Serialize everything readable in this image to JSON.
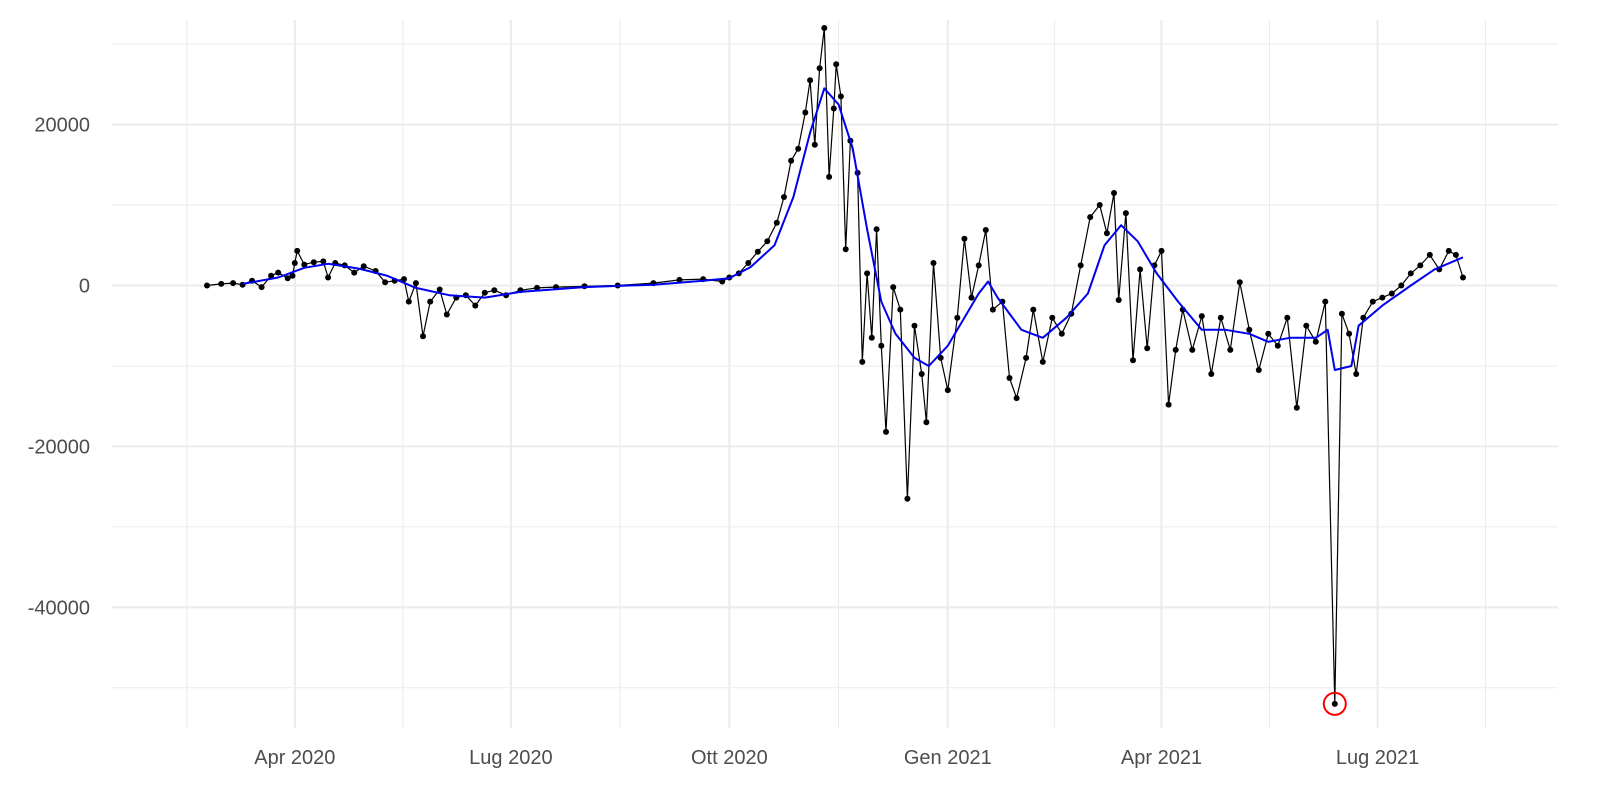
{
  "chart_data": {
    "type": "line",
    "title": "",
    "xlabel": "",
    "ylabel": "",
    "grid": true,
    "x_range": [
      "2020-01-15",
      "2021-09-15"
    ],
    "y_range": [
      -55000,
      33000
    ],
    "x_ticks": [
      {
        "date": "2020-04-01",
        "label": "Apr 2020"
      },
      {
        "date": "2020-07-01",
        "label": "Lug 2020"
      },
      {
        "date": "2020-10-01",
        "label": "Ott 2020"
      },
      {
        "date": "2021-01-01",
        "label": "Gen 2021"
      },
      {
        "date": "2021-04-01",
        "label": "Apr 2021"
      },
      {
        "date": "2021-07-01",
        "label": "Lug 2021"
      }
    ],
    "y_ticks": [
      {
        "value": 20000,
        "label": "20000"
      },
      {
        "value": 0,
        "label": "0"
      },
      {
        "value": -20000,
        "label": "-20000"
      },
      {
        "value": -40000,
        "label": "-40000"
      }
    ],
    "series": [
      {
        "role": "daily-values",
        "color": "#000000",
        "style": "line-with-points",
        "points": [
          [
            "2020-02-24",
            0
          ],
          [
            "2020-03-01",
            200
          ],
          [
            "2020-03-06",
            300
          ],
          [
            "2020-03-10",
            100
          ],
          [
            "2020-03-14",
            600
          ],
          [
            "2020-03-18",
            -200
          ],
          [
            "2020-03-22",
            1200
          ],
          [
            "2020-03-25",
            1600
          ],
          [
            "2020-03-29",
            900
          ],
          [
            "2020-03-31",
            1200
          ],
          [
            "2020-04-01",
            2800
          ],
          [
            "2020-04-02",
            4300
          ],
          [
            "2020-04-05",
            2600
          ],
          [
            "2020-04-09",
            2900
          ],
          [
            "2020-04-13",
            3000
          ],
          [
            "2020-04-15",
            1000
          ],
          [
            "2020-04-18",
            2800
          ],
          [
            "2020-04-22",
            2500
          ],
          [
            "2020-04-26",
            1600
          ],
          [
            "2020-04-30",
            2400
          ],
          [
            "2020-05-05",
            1800
          ],
          [
            "2020-05-09",
            400
          ],
          [
            "2020-05-13",
            600
          ],
          [
            "2020-05-17",
            800
          ],
          [
            "2020-05-19",
            -2000
          ],
          [
            "2020-05-22",
            300
          ],
          [
            "2020-05-25",
            -6300
          ],
          [
            "2020-05-28",
            -2000
          ],
          [
            "2020-06-01",
            -500
          ],
          [
            "2020-06-04",
            -3600
          ],
          [
            "2020-06-08",
            -1500
          ],
          [
            "2020-06-12",
            -1200
          ],
          [
            "2020-06-16",
            -2500
          ],
          [
            "2020-06-20",
            -900
          ],
          [
            "2020-06-24",
            -600
          ],
          [
            "2020-06-29",
            -1200
          ],
          [
            "2020-07-05",
            -600
          ],
          [
            "2020-07-12",
            -300
          ],
          [
            "2020-07-20",
            -200
          ],
          [
            "2020-08-01",
            -100
          ],
          [
            "2020-08-15",
            0
          ],
          [
            "2020-08-30",
            300
          ],
          [
            "2020-09-10",
            700
          ],
          [
            "2020-09-20",
            800
          ],
          [
            "2020-09-28",
            500
          ],
          [
            "2020-10-01",
            1000
          ],
          [
            "2020-10-05",
            1500
          ],
          [
            "2020-10-09",
            2800
          ],
          [
            "2020-10-13",
            4200
          ],
          [
            "2020-10-17",
            5500
          ],
          [
            "2020-10-21",
            7800
          ],
          [
            "2020-10-24",
            11000
          ],
          [
            "2020-10-27",
            15500
          ],
          [
            "2020-10-30",
            17000
          ],
          [
            "2020-11-02",
            21500
          ],
          [
            "2020-11-04",
            25500
          ],
          [
            "2020-11-06",
            17500
          ],
          [
            "2020-11-08",
            27000
          ],
          [
            "2020-11-10",
            32000
          ],
          [
            "2020-11-12",
            13500
          ],
          [
            "2020-11-14",
            22000
          ],
          [
            "2020-11-15",
            27500
          ],
          [
            "2020-11-17",
            23500
          ],
          [
            "2020-11-19",
            4500
          ],
          [
            "2020-11-21",
            18000
          ],
          [
            "2020-11-24",
            14000
          ],
          [
            "2020-11-26",
            -9500
          ],
          [
            "2020-11-28",
            1500
          ],
          [
            "2020-11-30",
            -6500
          ],
          [
            "2020-12-02",
            7000
          ],
          [
            "2020-12-04",
            -7500
          ],
          [
            "2020-12-06",
            -18200
          ],
          [
            "2020-12-09",
            -200
          ],
          [
            "2020-12-12",
            -3000
          ],
          [
            "2020-12-15",
            -26500
          ],
          [
            "2020-12-18",
            -5000
          ],
          [
            "2020-12-21",
            -11000
          ],
          [
            "2020-12-23",
            -17000
          ],
          [
            "2020-12-26",
            2800
          ],
          [
            "2020-12-29",
            -9000
          ],
          [
            "2021-01-01",
            -13000
          ],
          [
            "2021-01-05",
            -4000
          ],
          [
            "2021-01-08",
            5800
          ],
          [
            "2021-01-11",
            -1500
          ],
          [
            "2021-01-14",
            2500
          ],
          [
            "2021-01-17",
            6900
          ],
          [
            "2021-01-20",
            -3000
          ],
          [
            "2021-01-24",
            -2000
          ],
          [
            "2021-01-27",
            -11500
          ],
          [
            "2021-01-30",
            -14000
          ],
          [
            "2021-02-03",
            -9000
          ],
          [
            "2021-02-06",
            -3000
          ],
          [
            "2021-02-10",
            -9500
          ],
          [
            "2021-02-14",
            -4000
          ],
          [
            "2021-02-18",
            -6000
          ],
          [
            "2021-02-22",
            -3500
          ],
          [
            "2021-02-26",
            2500
          ],
          [
            "2021-03-02",
            8500
          ],
          [
            "2021-03-06",
            10000
          ],
          [
            "2021-03-09",
            6500
          ],
          [
            "2021-03-12",
            11500
          ],
          [
            "2021-03-14",
            -1800
          ],
          [
            "2021-03-17",
            9000
          ],
          [
            "2021-03-20",
            -9300
          ],
          [
            "2021-03-23",
            2000
          ],
          [
            "2021-03-26",
            -7800
          ],
          [
            "2021-03-29",
            2500
          ],
          [
            "2021-04-01",
            4300
          ],
          [
            "2021-04-04",
            -14800
          ],
          [
            "2021-04-07",
            -8000
          ],
          [
            "2021-04-10",
            -3000
          ],
          [
            "2021-04-14",
            -8000
          ],
          [
            "2021-04-18",
            -3800
          ],
          [
            "2021-04-22",
            -11000
          ],
          [
            "2021-04-26",
            -4000
          ],
          [
            "2021-04-30",
            -8000
          ],
          [
            "2021-05-04",
            400
          ],
          [
            "2021-05-08",
            -5500
          ],
          [
            "2021-05-12",
            -10500
          ],
          [
            "2021-05-16",
            -6000
          ],
          [
            "2021-05-20",
            -7500
          ],
          [
            "2021-05-24",
            -4000
          ],
          [
            "2021-05-28",
            -15200
          ],
          [
            "2021-06-01",
            -5000
          ],
          [
            "2021-06-05",
            -7000
          ],
          [
            "2021-06-09",
            -2000
          ],
          [
            "2021-06-13",
            -52000
          ],
          [
            "2021-06-16",
            -3500
          ],
          [
            "2021-06-19",
            -6000
          ],
          [
            "2021-06-22",
            -11000
          ],
          [
            "2021-06-25",
            -4000
          ],
          [
            "2021-06-29",
            -2000
          ],
          [
            "2021-07-03",
            -1500
          ],
          [
            "2021-07-07",
            -1000
          ],
          [
            "2021-07-11",
            0
          ],
          [
            "2021-07-15",
            1500
          ],
          [
            "2021-07-19",
            2500
          ],
          [
            "2021-07-23",
            3800
          ],
          [
            "2021-07-27",
            2000
          ],
          [
            "2021-07-31",
            4300
          ],
          [
            "2021-08-03",
            3800
          ],
          [
            "2021-08-06",
            1000
          ]
        ]
      },
      {
        "role": "smoothed-trend",
        "color": "#0000ee",
        "style": "line",
        "points": [
          [
            "2020-03-10",
            200
          ],
          [
            "2020-03-25",
            1000
          ],
          [
            "2020-04-05",
            2200
          ],
          [
            "2020-04-15",
            2700
          ],
          [
            "2020-04-28",
            2100
          ],
          [
            "2020-05-10",
            1200
          ],
          [
            "2020-05-22",
            -300
          ],
          [
            "2020-06-05",
            -1200
          ],
          [
            "2020-06-20",
            -1500
          ],
          [
            "2020-07-05",
            -800
          ],
          [
            "2020-08-01",
            -200
          ],
          [
            "2020-08-30",
            100
          ],
          [
            "2020-09-20",
            600
          ],
          [
            "2020-10-01",
            900
          ],
          [
            "2020-10-10",
            2300
          ],
          [
            "2020-10-20",
            5000
          ],
          [
            "2020-10-28",
            11000
          ],
          [
            "2020-11-04",
            19000
          ],
          [
            "2020-11-10",
            24500
          ],
          [
            "2020-11-16",
            22500
          ],
          [
            "2020-11-22",
            17000
          ],
          [
            "2020-11-28",
            7000
          ],
          [
            "2020-12-04",
            -2000
          ],
          [
            "2020-12-10",
            -6000
          ],
          [
            "2020-12-18",
            -9000
          ],
          [
            "2020-12-24",
            -10000
          ],
          [
            "2021-01-01",
            -7500
          ],
          [
            "2021-01-08",
            -4000
          ],
          [
            "2021-01-14",
            -1000
          ],
          [
            "2021-01-18",
            500
          ],
          [
            "2021-01-22",
            -1500
          ],
          [
            "2021-02-01",
            -5500
          ],
          [
            "2021-02-10",
            -6500
          ],
          [
            "2021-02-20",
            -4000
          ],
          [
            "2021-03-01",
            -1000
          ],
          [
            "2021-03-08",
            5000
          ],
          [
            "2021-03-15",
            7500
          ],
          [
            "2021-03-22",
            5500
          ],
          [
            "2021-03-30",
            1500
          ],
          [
            "2021-04-08",
            -2000
          ],
          [
            "2021-04-18",
            -5500
          ],
          [
            "2021-04-28",
            -5500
          ],
          [
            "2021-05-08",
            -6000
          ],
          [
            "2021-05-16",
            -7000
          ],
          [
            "2021-05-25",
            -6500
          ],
          [
            "2021-06-05",
            -6500
          ],
          [
            "2021-06-10",
            -5500
          ],
          [
            "2021-06-13",
            -10500
          ],
          [
            "2021-06-20",
            -10000
          ],
          [
            "2021-06-23",
            -5000
          ],
          [
            "2021-07-03",
            -2500
          ],
          [
            "2021-07-15",
            0
          ],
          [
            "2021-07-25",
            2000
          ],
          [
            "2021-08-06",
            3500
          ]
        ]
      }
    ],
    "annotations": [
      {
        "type": "circle",
        "date": "2021-06-13",
        "value": -52000,
        "color": "#ff0000"
      }
    ],
    "colors": {
      "gridline": "#ebebeb",
      "tick_text": "#4d4d4d",
      "background": "#ffffff"
    }
  }
}
